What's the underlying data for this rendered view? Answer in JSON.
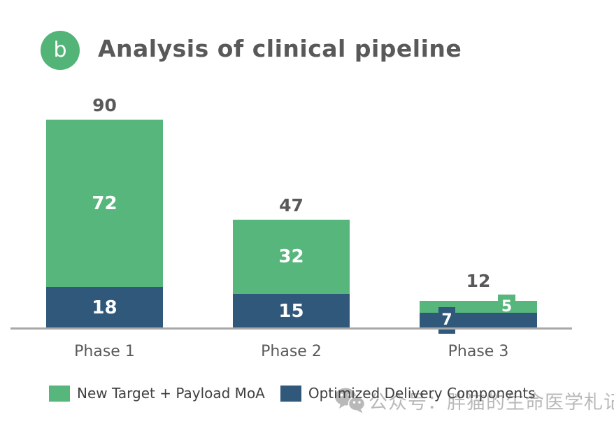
{
  "header": {
    "badge_label": "b",
    "title": "Analysis of clinical pipeline"
  },
  "chart_data": {
    "type": "bar",
    "stacked": true,
    "title": "Analysis of clinical pipeline",
    "categories": [
      "Phase 1",
      "Phase 2",
      "Phase 3"
    ],
    "series": [
      {
        "name": "New Target + Payload MoA",
        "color": "#56b67c",
        "values": [
          72,
          32,
          5
        ]
      },
      {
        "name": "Optimized Delivery Components",
        "color": "#2f587a",
        "values": [
          18,
          15,
          7
        ]
      }
    ],
    "stack_order_bottom_to_top": [
      "Optimized Delivery Components",
      "New Target + Payload MoA"
    ],
    "totals": [
      90,
      47,
      12
    ],
    "xlabel": "",
    "ylabel": "",
    "ylim": [
      0,
      95
    ],
    "grid": false,
    "legend_position": "bottom"
  },
  "bars": [
    {
      "category": "Phase 1",
      "total": "90",
      "green": "72",
      "blue": "18"
    },
    {
      "category": "Phase 2",
      "total": "47",
      "green": "32",
      "blue": "15"
    },
    {
      "category": "Phase 3",
      "total": "12",
      "green": "5",
      "blue": "7"
    }
  ],
  "legend": {
    "items": [
      {
        "label": "New Target + Payload MoA",
        "color": "#56b67c"
      },
      {
        "label": "Optimized Delivery Components",
        "color": "#2f587a"
      }
    ]
  },
  "watermark": {
    "icon": "wechat-icon",
    "text": "公众号：胖猫的生命医学札记"
  },
  "colors": {
    "green": "#56b67c",
    "blue": "#2f587a",
    "text_gray": "#595959",
    "axis_gray": "#a8a8a8",
    "watermark_gray": "#b2b2b2"
  }
}
